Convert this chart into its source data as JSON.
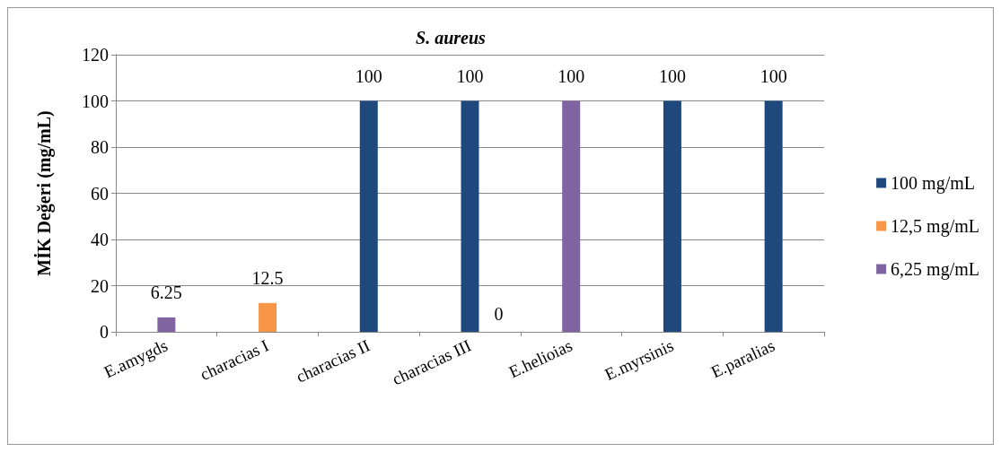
{
  "chart_data": {
    "type": "bar",
    "title": "S. aureus",
    "ylabel": "MİK Değeri (mg/mL)",
    "categories": [
      "E.amygds",
      "characias I",
      "characias II",
      "characias III",
      "E.helioias",
      "E.myrsinis",
      "E.paralias"
    ],
    "series": [
      {
        "name": "100 mg/mL",
        "color": "#1f497d",
        "values": [
          null,
          null,
          100,
          100,
          null,
          100,
          100
        ]
      },
      {
        "name": "12,5 mg/mL",
        "color": "#f79646",
        "values": [
          null,
          12.5,
          null,
          null,
          null,
          null,
          null
        ]
      },
      {
        "name": "6,25 mg/mL",
        "color": "#8064a2",
        "values": [
          6.25,
          null,
          null,
          null,
          100,
          null,
          null
        ]
      }
    ],
    "stacked": true,
    "data_labels": true,
    "annotations": [
      {
        "text": "0",
        "x": "characias III",
        "y": 0
      }
    ],
    "ylim": [
      0,
      120
    ],
    "yticks": [
      0,
      20,
      40,
      60,
      80,
      100,
      120
    ],
    "grid": "y",
    "legend": "right"
  }
}
